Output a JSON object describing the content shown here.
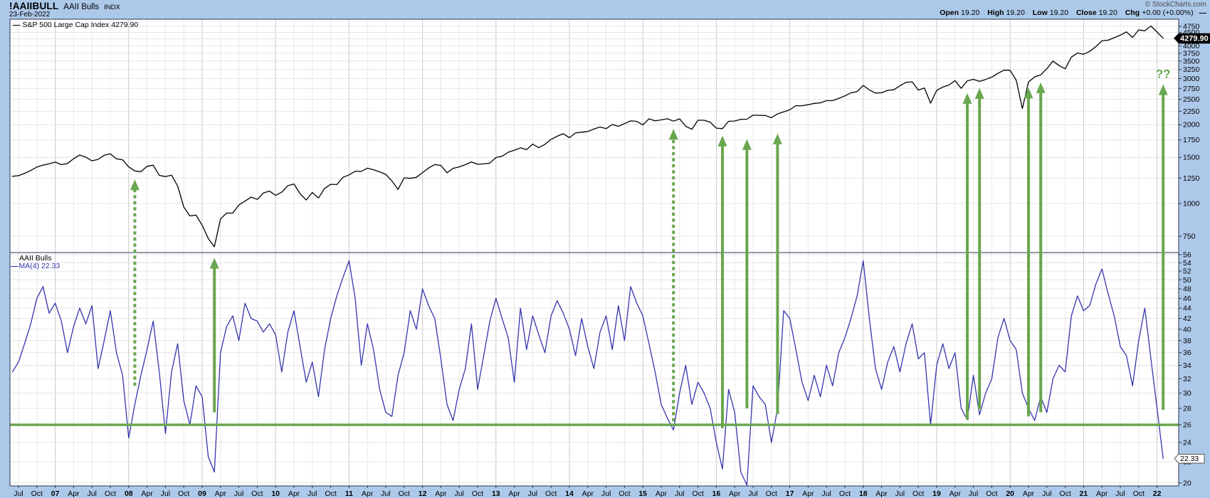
{
  "header": {
    "symbol": "!AAIIBULL",
    "name": "AAII Bulls",
    "exchange": "INDX",
    "date": "23-Feb-2022",
    "copyright": "© StockCharts.com",
    "quote": {
      "open_label": "Open",
      "open": "19.20",
      "high_label": "High",
      "high": "19.20",
      "low_label": "Low",
      "low": "19.20",
      "close_label": "Close",
      "close": "19.20",
      "chg_label": "Chg",
      "chg": "+0.00 (+0.00%)",
      "marker": "—"
    }
  },
  "price_panel": {
    "legend_marker": "—",
    "legend": "S&P 500 Large Cap Index 4279.90",
    "last_value_label": "4279.90"
  },
  "aaii_panel": {
    "title": "AAII Bulls",
    "legend_marker": "—",
    "legend": "MA(4) 22.33",
    "last_value_label": "22.33"
  },
  "colors": {
    "background": "#adc9ea",
    "plot": "#ffffff",
    "grid_minor": "#e8e8e8",
    "grid_year": "#c8c8c8",
    "grid_horizontal": "#e4e4e4",
    "border": "#2e3350",
    "sp500_line": "#000000",
    "aaii_line": "#3535ad",
    "signal_green": "#69a74e",
    "tick_text": "#000000",
    "price_box_bg": "#000000",
    "price_box_text": "#ffffff",
    "aaii_box_bg": "#ffffff",
    "aaii_box_border": "#555555",
    "aaii_box_text": "#000000"
  },
  "chart_data": {
    "type": "line",
    "title": "!AAIIBULL AAII Bulls (INDX) with S&P 500 Large Cap Index overlay",
    "x_unit": "months (values sampled ~monthly from weekly chart), start Jun-2006, end 23-Feb-2022",
    "start_month": "2006-06",
    "panels": [
      {
        "id": "price",
        "label": "S&P 500 Large Cap Index",
        "scale": "log",
        "ylim": [
          680,
          4960
        ],
        "ticks": [
          4750,
          4500,
          4250,
          4000,
          3750,
          3500,
          3250,
          3000,
          2750,
          2500,
          2250,
          2000,
          1750,
          1500,
          1250,
          1000,
          750
        ],
        "last": 4279.9
      },
      {
        "id": "aaii",
        "label": "AAII Bulls MA(4)",
        "scale": "log",
        "ylim": [
          19.7,
          56.5
        ],
        "ticks": [
          56,
          54,
          52,
          50,
          48,
          46,
          44,
          42,
          40,
          38,
          36,
          34,
          32,
          30,
          28,
          26,
          24,
          22,
          20
        ],
        "last": 22.33,
        "signal_level": 26
      }
    ],
    "series": [
      {
        "name": "S&P 500 Large Cap Index",
        "panel": "price",
        "color": "#000000",
        "values": [
          1270,
          1277,
          1304,
          1336,
          1378,
          1401,
          1418,
          1438,
          1407,
          1421,
          1482,
          1531,
          1503,
          1455,
          1474,
          1527,
          1549,
          1481,
          1468,
          1379,
          1331,
          1323,
          1386,
          1400,
          1280,
          1267,
          1283,
          1166,
          969,
          896,
          903,
          826,
          735,
          683,
          873,
          919,
          919,
          987,
          1021,
          1057,
          1036,
          1096,
          1115,
          1074,
          1104,
          1169,
          1187,
          1089,
          1031,
          1102,
          1049,
          1141,
          1183,
          1181,
          1258,
          1286,
          1327,
          1326,
          1364,
          1345,
          1321,
          1292,
          1219,
          1131,
          1253,
          1247,
          1258,
          1312,
          1366,
          1408,
          1398,
          1310,
          1362,
          1379,
          1407,
          1441,
          1412,
          1416,
          1426,
          1498,
          1515,
          1569,
          1598,
          1631,
          1606,
          1686,
          1633,
          1682,
          1757,
          1806,
          1848,
          1783,
          1859,
          1872,
          1884,
          1924,
          1960,
          1931,
          2003,
          1972,
          2018,
          2068,
          2059,
          1995,
          2105,
          2068,
          2086,
          2107,
          2063,
          2104,
          1972,
          1920,
          2079,
          2080,
          2044,
          1940,
          1932,
          2060,
          2065,
          2097,
          2099,
          2174,
          2171,
          2168,
          2126,
          2199,
          2239,
          2279,
          2364,
          2363,
          2384,
          2412,
          2423,
          2470,
          2472,
          2519,
          2575,
          2648,
          2674,
          2824,
          2714,
          2641,
          2648,
          2705,
          2718,
          2816,
          2902,
          2914,
          2712,
          2760,
          2417,
          2704,
          2784,
          2834,
          2946,
          2752,
          2942,
          2980,
          2926,
          2977,
          3038,
          3141,
          3231,
          3226,
          2954,
          2305,
          2912,
          3044,
          3100,
          3271,
          3500,
          3363,
          3270,
          3622,
          3756,
          3714,
          3811,
          3973,
          4181,
          4204,
          4298,
          4395,
          4523,
          4307,
          4605,
          4567,
          4766,
          4516,
          4279.9
        ]
      },
      {
        "name": "AAII Bulls MA(4)",
        "panel": "aaii",
        "color": "#3535ad",
        "values": [
          33,
          34.5,
          37.5,
          41,
          46,
          48.5,
          43,
          45,
          41.5,
          36,
          40.5,
          44,
          41,
          44.5,
          33.5,
          38,
          43.5,
          36,
          32.5,
          24.5,
          28.5,
          32.5,
          36.5,
          41.5,
          33,
          25,
          33,
          37.5,
          29,
          26,
          31,
          29.5,
          22.5,
          21,
          36,
          40.5,
          42.5,
          38,
          45,
          42,
          41.5,
          39.5,
          41,
          39,
          33,
          39.5,
          43.5,
          37,
          31.5,
          34.5,
          29.5,
          36.5,
          42,
          46.5,
          50.5,
          54.5,
          46,
          34,
          41,
          36.5,
          30.5,
          27.5,
          27,
          32.5,
          36,
          43.5,
          40,
          48,
          44.5,
          42,
          35,
          28.5,
          26.5,
          30.5,
          33.5,
          41,
          30.5,
          35.5,
          41.5,
          46,
          42,
          38.5,
          31.5,
          44,
          36.5,
          42.5,
          39,
          36,
          42.5,
          45.5,
          43,
          40,
          35.5,
          42,
          37,
          33.5,
          39.5,
          42.5,
          36.5,
          44.5,
          38,
          48.5,
          45,
          42.5,
          37.5,
          33,
          28.5,
          26.8,
          25.4,
          30,
          34,
          28.5,
          31.5,
          30,
          28,
          24,
          21.3,
          30.5,
          27.5,
          21,
          19.8,
          31,
          29.5,
          28.5,
          24,
          28,
          43.5,
          42,
          36.5,
          31.5,
          29,
          32.5,
          29.5,
          34,
          31,
          36,
          38.5,
          42,
          46.5,
          54.5,
          42,
          33.5,
          30.5,
          34.5,
          37,
          33,
          37.5,
          41,
          35,
          36,
          26,
          34,
          37.5,
          33.5,
          36,
          28,
          26.6,
          32.5,
          27.2,
          30,
          32,
          38.5,
          42,
          38,
          36.5,
          30,
          28,
          26.5,
          29.5,
          27.5,
          32,
          34,
          33,
          42.5,
          46.5,
          43.5,
          44.5,
          49,
          52.5,
          47,
          42.5,
          37,
          35.5,
          31,
          38,
          44,
          35,
          28,
          22.33
        ]
      }
    ],
    "x_labels": [
      {
        "i": 1,
        "text": "Jul"
      },
      {
        "i": 4,
        "text": "Oct"
      },
      {
        "i": 7,
        "text": "07",
        "bold": true
      },
      {
        "i": 10,
        "text": "Apr"
      },
      {
        "i": 13,
        "text": "Jul"
      },
      {
        "i": 16,
        "text": "Oct"
      },
      {
        "i": 19,
        "text": "08",
        "bold": true
      },
      {
        "i": 22,
        "text": "Apr"
      },
      {
        "i": 25,
        "text": "Jul"
      },
      {
        "i": 28,
        "text": "Oct"
      },
      {
        "i": 31,
        "text": "09",
        "bold": true
      },
      {
        "i": 34,
        "text": "Apr"
      },
      {
        "i": 37,
        "text": "Jul"
      },
      {
        "i": 40,
        "text": "Oct"
      },
      {
        "i": 43,
        "text": "10",
        "bold": true
      },
      {
        "i": 46,
        "text": "Apr"
      },
      {
        "i": 49,
        "text": "Jul"
      },
      {
        "i": 52,
        "text": "Oct"
      },
      {
        "i": 55,
        "text": "11",
        "bold": true
      },
      {
        "i": 58,
        "text": "Apr"
      },
      {
        "i": 61,
        "text": "Jul"
      },
      {
        "i": 64,
        "text": "Oct"
      },
      {
        "i": 67,
        "text": "12",
        "bold": true
      },
      {
        "i": 70,
        "text": "Apr"
      },
      {
        "i": 73,
        "text": "Jul"
      },
      {
        "i": 76,
        "text": "Oct"
      },
      {
        "i": 79,
        "text": "13",
        "bold": true
      },
      {
        "i": 82,
        "text": "Apr"
      },
      {
        "i": 85,
        "text": "Jul"
      },
      {
        "i": 88,
        "text": "Oct"
      },
      {
        "i": 91,
        "text": "14",
        "bold": true
      },
      {
        "i": 94,
        "text": "Apr"
      },
      {
        "i": 97,
        "text": "Jul"
      },
      {
        "i": 100,
        "text": "Oct"
      },
      {
        "i": 103,
        "text": "15",
        "bold": true
      },
      {
        "i": 106,
        "text": "Apr"
      },
      {
        "i": 109,
        "text": "Jul"
      },
      {
        "i": 112,
        "text": "Oct"
      },
      {
        "i": 115,
        "text": "16",
        "bold": true
      },
      {
        "i": 118,
        "text": "Apr"
      },
      {
        "i": 121,
        "text": "Jul"
      },
      {
        "i": 124,
        "text": "Oct"
      },
      {
        "i": 127,
        "text": "17",
        "bold": true
      },
      {
        "i": 130,
        "text": "Apr"
      },
      {
        "i": 133,
        "text": "Jul"
      },
      {
        "i": 136,
        "text": "Oct"
      },
      {
        "i": 139,
        "text": "18",
        "bold": true
      },
      {
        "i": 142,
        "text": "Apr"
      },
      {
        "i": 145,
        "text": "Jul"
      },
      {
        "i": 148,
        "text": "Oct"
      },
      {
        "i": 151,
        "text": "19",
        "bold": true
      },
      {
        "i": 154,
        "text": "Apr"
      },
      {
        "i": 157,
        "text": "Jul"
      },
      {
        "i": 160,
        "text": "Oct"
      },
      {
        "i": 163,
        "text": "20",
        "bold": true
      },
      {
        "i": 166,
        "text": "Apr"
      },
      {
        "i": 169,
        "text": "Jul"
      },
      {
        "i": 172,
        "text": "Oct"
      },
      {
        "i": 175,
        "text": "21",
        "bold": true
      },
      {
        "i": 178,
        "text": "Apr"
      },
      {
        "i": 181,
        "text": "Jul"
      },
      {
        "i": 184,
        "text": "Oct"
      },
      {
        "i": 187,
        "text": "22",
        "bold": true
      }
    ],
    "arrows": [
      {
        "date": "2008-02",
        "style": "dashed",
        "from_panel": "aaii",
        "from": 31,
        "to_panel": "price",
        "to": 1235
      },
      {
        "date": "2009-03",
        "style": "solid",
        "from_panel": "aaii",
        "from": 27.5,
        "to_panel": "aaii",
        "to": 55.2
      },
      {
        "date": "2015-06",
        "style": "dashed",
        "from_panel": "aaii",
        "from": 26.4,
        "to_panel": "price",
        "to": 1925
      },
      {
        "date": "2016-02",
        "style": "solid",
        "from_panel": "aaii",
        "from": 25.6,
        "to_panel": "price",
        "to": 1815
      },
      {
        "date": "2016-06",
        "style": "solid",
        "from_panel": "aaii",
        "from": 28.0,
        "to_panel": "price",
        "to": 1760
      },
      {
        "date": "2016-11",
        "style": "solid",
        "from_panel": "aaii",
        "from": 27.3,
        "to_panel": "price",
        "to": 1850
      },
      {
        "date": "2019-06",
        "style": "solid",
        "from_panel": "aaii",
        "from": 26.6,
        "to_panel": "price",
        "to": 2640
      },
      {
        "date": "2019-08",
        "style": "solid",
        "from_panel": "aaii",
        "from": 27.9,
        "to_panel": "price",
        "to": 2760
      },
      {
        "date": "2020-04",
        "style": "solid",
        "from_panel": "aaii",
        "from": 27.0,
        "to_panel": "price",
        "to": 2770
      },
      {
        "date": "2020-06",
        "style": "solid",
        "from_panel": "aaii",
        "from": 27.5,
        "to_panel": "price",
        "to": 2900
      },
      {
        "date": "2022-02",
        "style": "solid",
        "from_panel": "aaii",
        "from": 27.8,
        "to_panel": "price",
        "to": 2850,
        "annotation": "??"
      }
    ]
  }
}
